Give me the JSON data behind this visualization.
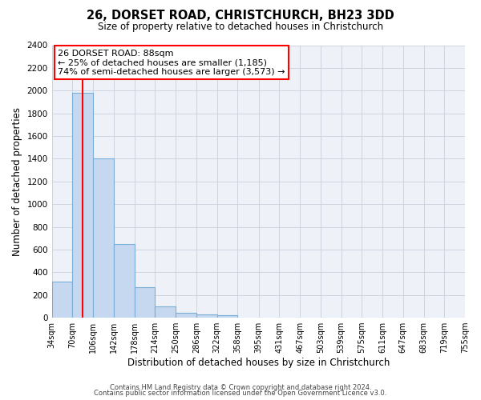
{
  "title": "26, DORSET ROAD, CHRISTCHURCH, BH23 3DD",
  "subtitle": "Size of property relative to detached houses in Christchurch",
  "xlabel": "Distribution of detached houses by size in Christchurch",
  "ylabel": "Number of detached properties",
  "bin_edges": [
    34,
    70,
    106,
    142,
    178,
    214,
    250,
    286,
    322,
    358,
    395,
    431,
    467,
    503,
    539,
    575,
    611,
    647,
    683,
    719,
    755
  ],
  "bin_counts": [
    320,
    1980,
    1400,
    650,
    270,
    100,
    45,
    30,
    20,
    0,
    0,
    0,
    0,
    0,
    0,
    0,
    0,
    0,
    0,
    0
  ],
  "bar_color": "#c5d8f0",
  "bar_edge_color": "#7aaed6",
  "red_line_x": 88,
  "ylim": [
    0,
    2400
  ],
  "yticks": [
    0,
    200,
    400,
    600,
    800,
    1000,
    1200,
    1400,
    1600,
    1800,
    2000,
    2200,
    2400
  ],
  "xtick_labels": [
    "34sqm",
    "70sqm",
    "106sqm",
    "142sqm",
    "178sqm",
    "214sqm",
    "250sqm",
    "286sqm",
    "322sqm",
    "358sqm",
    "395sqm",
    "431sqm",
    "467sqm",
    "503sqm",
    "539sqm",
    "575sqm",
    "611sqm",
    "647sqm",
    "683sqm",
    "719sqm",
    "755sqm"
  ],
  "annotation_title": "26 DORSET ROAD: 88sqm",
  "annotation_line1": "← 25% of detached houses are smaller (1,185)",
  "annotation_line2": "74% of semi-detached houses are larger (3,573) →",
  "footer_line1": "Contains HM Land Registry data © Crown copyright and database right 2024.",
  "footer_line2": "Contains public sector information licensed under the Open Government Licence v3.0.",
  "background_color": "#ffffff",
  "plot_bg_color": "#eef2f8"
}
